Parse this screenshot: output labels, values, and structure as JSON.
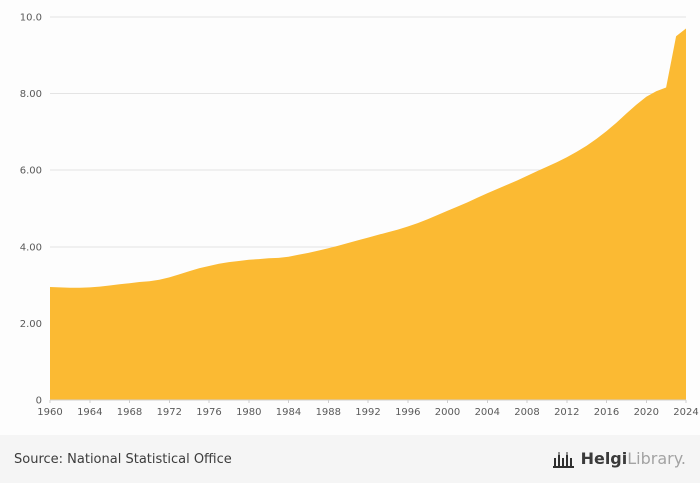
{
  "chart_data": {
    "type": "area",
    "x_range": [
      1960,
      2024
    ],
    "x_step": 1,
    "values": [
      2.95,
      2.94,
      2.93,
      2.93,
      2.94,
      2.96,
      2.99,
      3.02,
      3.05,
      3.08,
      3.1,
      3.14,
      3.2,
      3.28,
      3.36,
      3.44,
      3.5,
      3.56,
      3.6,
      3.63,
      3.66,
      3.68,
      3.7,
      3.71,
      3.74,
      3.79,
      3.84,
      3.9,
      3.96,
      4.03,
      4.1,
      4.17,
      4.24,
      4.31,
      4.38,
      4.45,
      4.53,
      4.62,
      4.72,
      4.83,
      4.94,
      5.05,
      5.16,
      5.28,
      5.4,
      5.51,
      5.62,
      5.73,
      5.85,
      5.97,
      6.09,
      6.21,
      6.34,
      6.48,
      6.64,
      6.82,
      7.02,
      7.24,
      7.48,
      7.71,
      7.92,
      8.06,
      8.16,
      9.5,
      9.7
    ],
    "ylim": [
      0,
      10
    ],
    "yticks": [
      0,
      2,
      4,
      6,
      8,
      10
    ],
    "ytick_labels": [
      "0",
      "2.00",
      "4.00",
      "6.00",
      "8.00",
      "10.0"
    ],
    "xticks": [
      1960,
      1964,
      1968,
      1972,
      1976,
      1980,
      1984,
      1988,
      1992,
      1996,
      2000,
      2004,
      2008,
      2012,
      2016,
      2020,
      2024
    ],
    "xtick_labels": [
      "1960",
      "1964",
      "1968",
      "1972",
      "1976",
      "1980",
      "1984",
      "1988",
      "1992",
      "1996",
      "2000",
      "2004",
      "2008",
      "2012",
      "2016",
      "2020",
      "2024"
    ],
    "fill_color": "#fbba33",
    "grid": true,
    "legend": "none",
    "title": ""
  },
  "footer": {
    "source": "Source: National Statistical Office",
    "brand_bold": "Helgi",
    "brand_light": "Library."
  }
}
